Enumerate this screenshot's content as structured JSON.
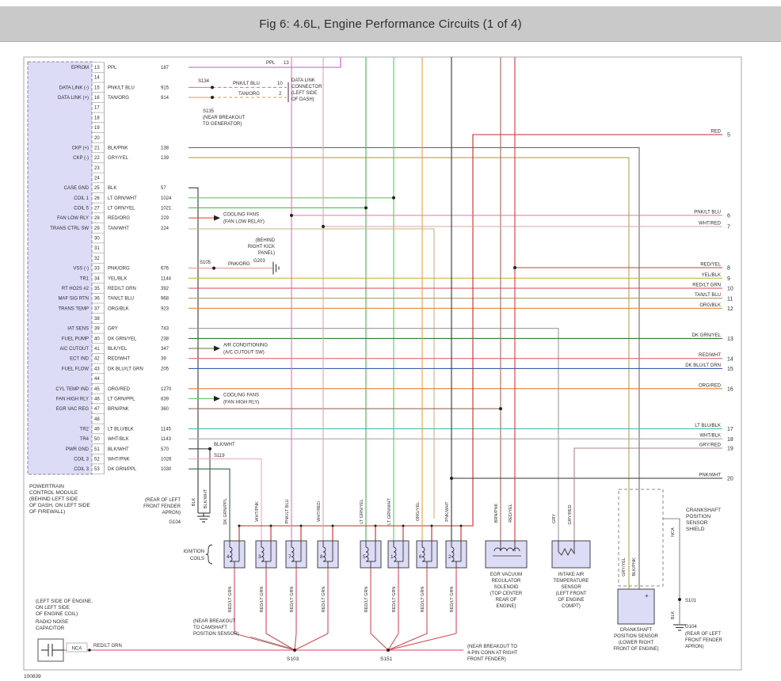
{
  "title": "Fig 6: 4.6L, Engine Performance Circuits (1 of 4)",
  "doc_number": "100839",
  "palette": {
    "component_fill": "#dcdcf7",
    "wires": {
      "PPL": "#d24fd2",
      "PNK/LT BLU": "#ef6db7",
      "TAN/ORG": "#c9a253",
      "BLK/PNK": "#6b6b6b",
      "GRY/YEL": "#b3a25a",
      "BLK": "#3a3a3a",
      "LT GRN/WHT": "#4fd44f",
      "LT GRN/YEL": "#3dbb3d",
      "RED/ORG": "#e05536",
      "TAN/WHT": "#cdb284",
      "PNK/ORG": "#ef8f9b",
      "YEL/BLK": "#c9b93a",
      "RED/LT GRN": "#d24a55",
      "TAN/LT BLU": "#bb9a66",
      "ORG/BLK": "#e08a35",
      "GRY": "#9a9a9a",
      "DK GRN/YEL": "#2e7d3a",
      "BLK/YEL": "#6f6f3a",
      "RED/WHT": "#e06a6a",
      "DK BLU/LT GRN": "#3a5fae",
      "ORG/RED": "#ed7a35",
      "LT GRN/PPL": "#5fc46a",
      "BRN/PNK": "#9a6a58",
      "LT BLU/BLK": "#3ab9b9",
      "WHT/BLK": "#a8a8a8",
      "BLK/WHT": "#4a4a4a",
      "WHT/PNK": "#eaa8c6",
      "DK GRN/PPL": "#2f6b3f",
      "RED": "#cc2727",
      "RED/YEL": "#d23a3a",
      "WHT/RED": "#dda6a6",
      "ORG/YEL": "#eda035",
      "GRY/RED": "#ab8585",
      "NCA": "#8a8a8a"
    }
  },
  "pcm": {
    "note": [
      "POWERTRAIN",
      "CONTROL MODULE",
      "(BEHIND LEFT SIDE",
      "OF DASH, ON LEFT SIDE",
      "OF FIREWALL)"
    ],
    "pins": [
      {
        "n": 13,
        "label": "EPROM",
        "color": "PPL",
        "circuit": "187"
      },
      {
        "n": 14
      },
      {
        "n": 15,
        "label": "DATA LINK (-)",
        "color": "PNK/LT BLU",
        "circuit": "915"
      },
      {
        "n": 16,
        "label": "DATA LINK (+)",
        "color": "TAN/ORG",
        "circuit": "914"
      },
      {
        "n": 17
      },
      {
        "n": 18
      },
      {
        "n": 19
      },
      {
        "n": 20
      },
      {
        "n": 21,
        "label": "CKP (+)",
        "color": "BLK/PNK",
        "circuit": "138"
      },
      {
        "n": 22,
        "label": "CKP (-)",
        "color": "GRY/YEL",
        "circuit": "139"
      },
      {
        "n": 23
      },
      {
        "n": 24
      },
      {
        "n": 25,
        "label": "CASE GND",
        "color": "BLK",
        "circuit": "57"
      },
      {
        "n": 26,
        "label": "COIL 1",
        "color": "LT GRN/WHT",
        "circuit": "1024"
      },
      {
        "n": 27,
        "label": "COIL 5",
        "color": "LT GRN/YEL",
        "circuit": "1021"
      },
      {
        "n": 28,
        "label": "FAN LOW RLY",
        "color": "RED/ORG",
        "circuit": "229"
      },
      {
        "n": 29,
        "label": "TRANS CTRL SW",
        "color": "TAN/WHT",
        "circuit": "224"
      },
      {
        "n": 30
      },
      {
        "n": 31
      },
      {
        "n": 32
      },
      {
        "n": 33,
        "label": "VSS (-)",
        "color": "PNK/ORG",
        "circuit": "676"
      },
      {
        "n": 34,
        "label": "TR1",
        "color": "YEL/BLK",
        "circuit": "1144"
      },
      {
        "n": 35,
        "label": "RT HO2S #2",
        "color": "RED/LT GRN",
        "circuit": "392"
      },
      {
        "n": 36,
        "label": "MAF SIG RTN",
        "color": "TAN/LT BLU",
        "circuit": "968"
      },
      {
        "n": 37,
        "label": "TRANS TEMP",
        "color": "ORG/BLK",
        "circuit": "923"
      },
      {
        "n": 38
      },
      {
        "n": 39,
        "label": "IAT SENS",
        "color": "GRY",
        "circuit": "743"
      },
      {
        "n": 40,
        "label": "FUEL PUMP",
        "color": "DK GRN/YEL",
        "circuit": "238"
      },
      {
        "n": 41,
        "label": "A/C CUTOUT",
        "color": "BLK/YEL",
        "circuit": "347"
      },
      {
        "n": 42,
        "label": "ECT IND",
        "color": "RED/WHT",
        "circuit": "39"
      },
      {
        "n": 43,
        "label": "FUEL FLOW",
        "color": "DK BLU/LT GRN",
        "circuit": "205"
      },
      {
        "n": 44
      },
      {
        "n": 45,
        "label": "CYL TEMP IND",
        "color": "ORG/RED",
        "circuit": "1270"
      },
      {
        "n": 46,
        "label": "FAN HIGH RLY",
        "color": "LT GRN/PPL",
        "circuit": "639"
      },
      {
        "n": 47,
        "label": "EGR VAC REG",
        "color": "BRN/PNK",
        "circuit": "360"
      },
      {
        "n": 48
      },
      {
        "n": 49,
        "label": "TR2",
        "color": "LT BLU/BLK",
        "circuit": "1145"
      },
      {
        "n": 50,
        "label": "TR4",
        "color": "WHT/BLK",
        "circuit": "1143"
      },
      {
        "n": 51,
        "label": "PWR GND",
        "color": "BLK/WHT",
        "circuit": "570"
      },
      {
        "n": 52,
        "label": "COIL 3",
        "color": "WHT/PNK",
        "circuit": "1026"
      },
      {
        "n": 53,
        "label": "COIL 3",
        "color": "DK GRN/PPL",
        "circuit": "1030"
      }
    ]
  },
  "right_exits": [
    {
      "n": "5",
      "color": "RED"
    },
    {
      "n": "6",
      "color": "PNK/LT BLU"
    },
    {
      "n": "7",
      "color": "WHT/RED"
    },
    {
      "n": "8",
      "color": "RED/YEL"
    },
    {
      "n": "9",
      "color": "YEL/BLK"
    },
    {
      "n": "10",
      "color": "RED/LT GRN"
    },
    {
      "n": "11",
      "color": "TAN/LT BLU"
    },
    {
      "n": "12",
      "color": "ORG/BLK"
    },
    {
      "n": "13",
      "color": "DK GRN/YEL"
    },
    {
      "n": "14",
      "color": "RED/WHT"
    },
    {
      "n": "15",
      "color": "DK BLU/LT GRN"
    },
    {
      "n": "16",
      "color": "ORG/RED"
    },
    {
      "n": "17",
      "color": "LT BLU/BLK"
    },
    {
      "n": "18",
      "color": "WHT/BLK"
    },
    {
      "n": "19",
      "color": "GRY/RED"
    },
    {
      "n": "20",
      "color": "PNK/WHT"
    }
  ],
  "top_area": {
    "ppl_label": "PPL",
    "ppl_page": "13",
    "s134": "S134",
    "s135": "S135",
    "s135_note": [
      "(NEAR BREAKOUT",
      "TO GENERATOR)"
    ],
    "branch1": {
      "color": "PNK/LT BLU",
      "circuit": "10"
    },
    "branch2": {
      "color": "TAN/ORG",
      "circuit": "2"
    },
    "dlc": [
      "DATA LINK",
      "CONNECTOR",
      "(LEFT SIDE",
      "OF DASH)"
    ]
  },
  "arrows": [
    {
      "lines": [
        "COOLING FANS",
        "(FAN LOW RELAY)"
      ]
    },
    {
      "lines": [
        "AIR CONDITIONING",
        "(A/C CUTOUT SW)"
      ]
    },
    {
      "lines": [
        "COOLING FANS",
        "(FAN HIGH RLY)"
      ]
    }
  ],
  "g203": {
    "note": [
      "(BEHIND",
      "RIGHT KICK",
      "PANEL)"
    ],
    "name": "G203",
    "s105": "S105",
    "wire": "PNK/ORG"
  },
  "g104_left": {
    "note": [
      "(REAR OF LEFT",
      "FRONT FENDER",
      "APRON)"
    ],
    "name": "G104",
    "wire1": "BLK",
    "wire2": "BLK/WHT",
    "s119": "S119",
    "s119_wire": "BLK/WHT"
  },
  "coils": {
    "group_label": [
      "IGNITION",
      "COILS"
    ],
    "numbers": [
      "4",
      "3",
      "7",
      "8",
      "5",
      "1",
      "6",
      "2"
    ],
    "top_wires": [
      "DK GRN/PPL",
      "WHT/PNK",
      "PNK/LT BLU",
      "WHT/RED",
      "LT GRN/YEL",
      "LT GRN/WHT",
      "ORG/YEL",
      "PNK/WHT"
    ],
    "bottom_wire": "RED/LT GRN",
    "s103": "S103",
    "s151": "S151",
    "camshaft_note": [
      "(NEAR BREAKOUT",
      "TO CAMSHAFT",
      "POSITION SENSOR)"
    ],
    "fourpin_note": [
      "(NEAR BREAKOUT TO",
      "4-PIN CONN AT RIGHT",
      "FRONT FENDER)"
    ]
  },
  "egr": {
    "wires": [
      "BRN/PNK",
      "RED/YEL"
    ],
    "label": [
      "EGR VACUUM",
      "REGULATOR",
      "SOLENOID",
      "(TOP CENTER",
      "REAR OF",
      "ENGINE)"
    ]
  },
  "iat": {
    "wires": [
      "GRY",
      "GRY/RED"
    ],
    "label": [
      "INTAKE AIR",
      "TEMPERATURE",
      "SENSOR",
      "(LEFT FRONT",
      "OF ENGINE",
      "COMPT)"
    ]
  },
  "ckp": {
    "wires": [
      "GRY/YEL",
      "BLK/PNK"
    ],
    "shield_label": [
      "CRANKSHAFT",
      "POSITION",
      "SENSOR",
      "SHIELD"
    ],
    "drain": "NCA",
    "s101": "S101",
    "drain2": "BLK",
    "g104": "G104",
    "g104_note": [
      "(REAR OF LEFT",
      "FRONT FENDER",
      "APRON)"
    ],
    "label": [
      "CRANKSHAFT",
      "POSITION SENSOR",
      "(LOWER RIGHT",
      "FRONT OF ENGINE)"
    ],
    "plus": "+"
  },
  "capacitor": {
    "note": [
      "(LEFT SIDE OF ENGINE,",
      "ON LEFT SIDE",
      "OF ENGINE COIL)",
      "RADIO NOISE",
      "CAPACITOR"
    ],
    "wire1": "NCA",
    "wire2": "RED/LT GRN"
  }
}
